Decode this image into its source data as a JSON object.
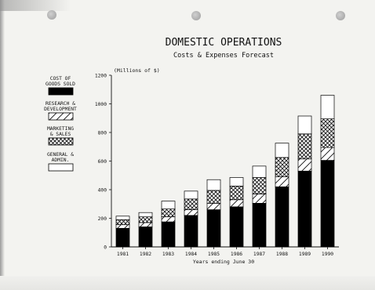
{
  "chart_data": {
    "type": "bar",
    "stacked": true,
    "title": "DOMESTIC OPERATIONS",
    "subtitle": "Costs & Expenses Forecast",
    "ylabel": "(Millions of $)",
    "xlabel": "Years ending June 30",
    "ylim": [
      0,
      1200
    ],
    "yticks": [
      "0",
      "200",
      "400",
      "600",
      "800",
      "1000",
      "1200"
    ],
    "categories": [
      "1981",
      "1982",
      "1983",
      "1984",
      "1985",
      "1986",
      "1987",
      "1988",
      "1989",
      "1990"
    ],
    "legend_position": "left",
    "series": [
      {
        "name": "COST OF GOODS SOLD",
        "pattern": "solid",
        "color": "#000000",
        "values": [
          130,
          140,
          175,
          220,
          260,
          280,
          305,
          420,
          530,
          605
        ]
      },
      {
        "name": "RESEARCH & DEVELOPMENT",
        "pattern": "diagonal",
        "color": "#ffffff",
        "values": [
          25,
          30,
          35,
          40,
          45,
          50,
          65,
          70,
          85,
          90
        ]
      },
      {
        "name": "MARKETING & SALES",
        "pattern": "crosshatch",
        "color": "#ffffff",
        "values": [
          35,
          40,
          55,
          75,
          90,
          95,
          115,
          135,
          175,
          200
        ]
      },
      {
        "name": "GENERAL & ADMIN.",
        "pattern": "blank",
        "color": "#ffffff",
        "values": [
          25,
          30,
          55,
          55,
          75,
          60,
          80,
          100,
          125,
          165
        ]
      }
    ]
  },
  "legend": {
    "cogs": [
      "COST OF",
      "GOODS SOLD"
    ],
    "rd": [
      "RESEARCH &",
      "DEVELOPMENT"
    ],
    "mkt": [
      "MARKETING",
      "& SALES"
    ],
    "ga": [
      "GENERAL &",
      "ADMIN."
    ]
  }
}
